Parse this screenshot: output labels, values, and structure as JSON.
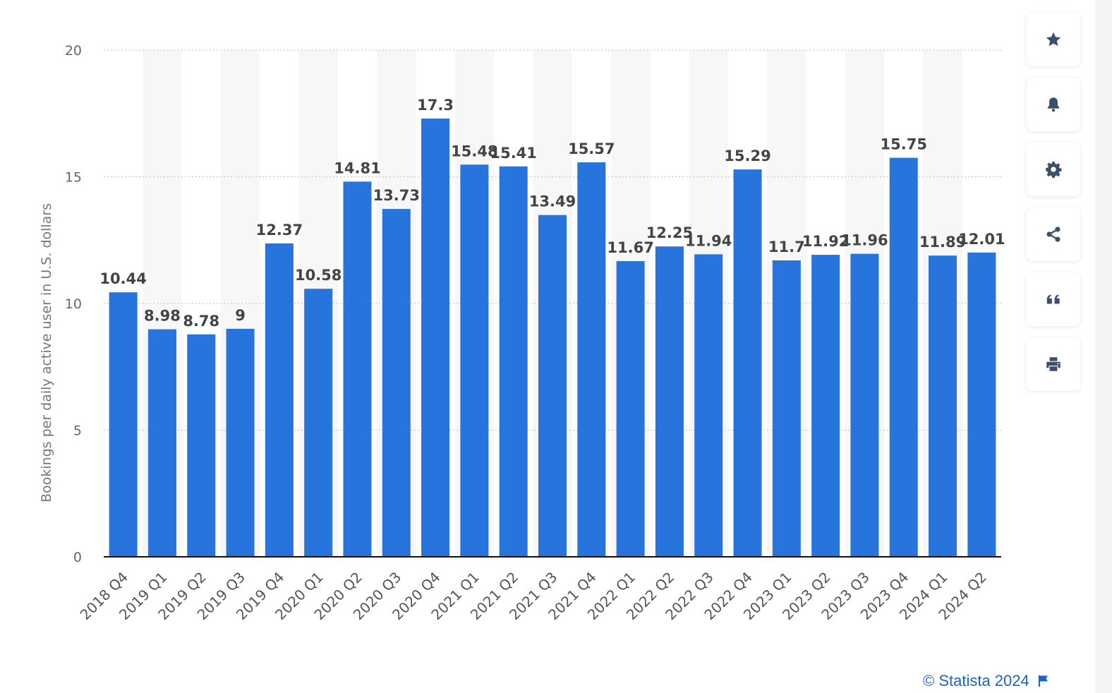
{
  "chart_data": {
    "type": "bar",
    "title": "",
    "xlabel": "",
    "ylabel": "Bookings per daily active user in U.S. dollars",
    "ylim": [
      0,
      20
    ],
    "yticks": [
      "0",
      "5",
      "10",
      "15",
      "20"
    ],
    "grid": true,
    "bar_color": "#2874dd",
    "categories": [
      "2018 Q4",
      "2019 Q1",
      "2019 Q2",
      "2019 Q3",
      "2019 Q4",
      "2020 Q1",
      "2020 Q2",
      "2020 Q3",
      "2020 Q4",
      "2021 Q1",
      "2021 Q2",
      "2021 Q3",
      "2021 Q4",
      "2022 Q1",
      "2022 Q2",
      "2022 Q3",
      "2022 Q4",
      "2023 Q1",
      "2023 Q2",
      "2023 Q3",
      "2023 Q4",
      "2024 Q1",
      "2024 Q2"
    ],
    "values": [
      10.44,
      8.98,
      8.78,
      9,
      12.37,
      10.58,
      14.81,
      13.73,
      17.3,
      15.48,
      15.41,
      13.49,
      15.57,
      11.67,
      12.25,
      11.94,
      15.29,
      11.7,
      11.92,
      11.96,
      15.75,
      11.89,
      12.01
    ],
    "value_labels": [
      "10.44",
      "8.98",
      "8.78",
      "9",
      "12.37",
      "10.58",
      "14.81",
      "13.73",
      "17.3",
      "15.48",
      "15.41",
      "13.49",
      "15.57",
      "11.67",
      "12.25",
      "11.94",
      "15.29",
      "11.7",
      "11.92",
      "11.96",
      "15.75",
      "11.89",
      "12.01"
    ]
  },
  "toolbar": {
    "items": [
      {
        "name": "favorite",
        "icon": "star-icon"
      },
      {
        "name": "notification",
        "icon": "bell-icon"
      },
      {
        "name": "settings",
        "icon": "gear-icon"
      },
      {
        "name": "share",
        "icon": "share-icon"
      },
      {
        "name": "citation",
        "icon": "quote-icon"
      },
      {
        "name": "print",
        "icon": "print-icon"
      }
    ],
    "icon_color": "#3c4f6b"
  },
  "credit": {
    "text": "© Statista 2024",
    "icon": "flag-icon",
    "color": "#1a63c9"
  }
}
